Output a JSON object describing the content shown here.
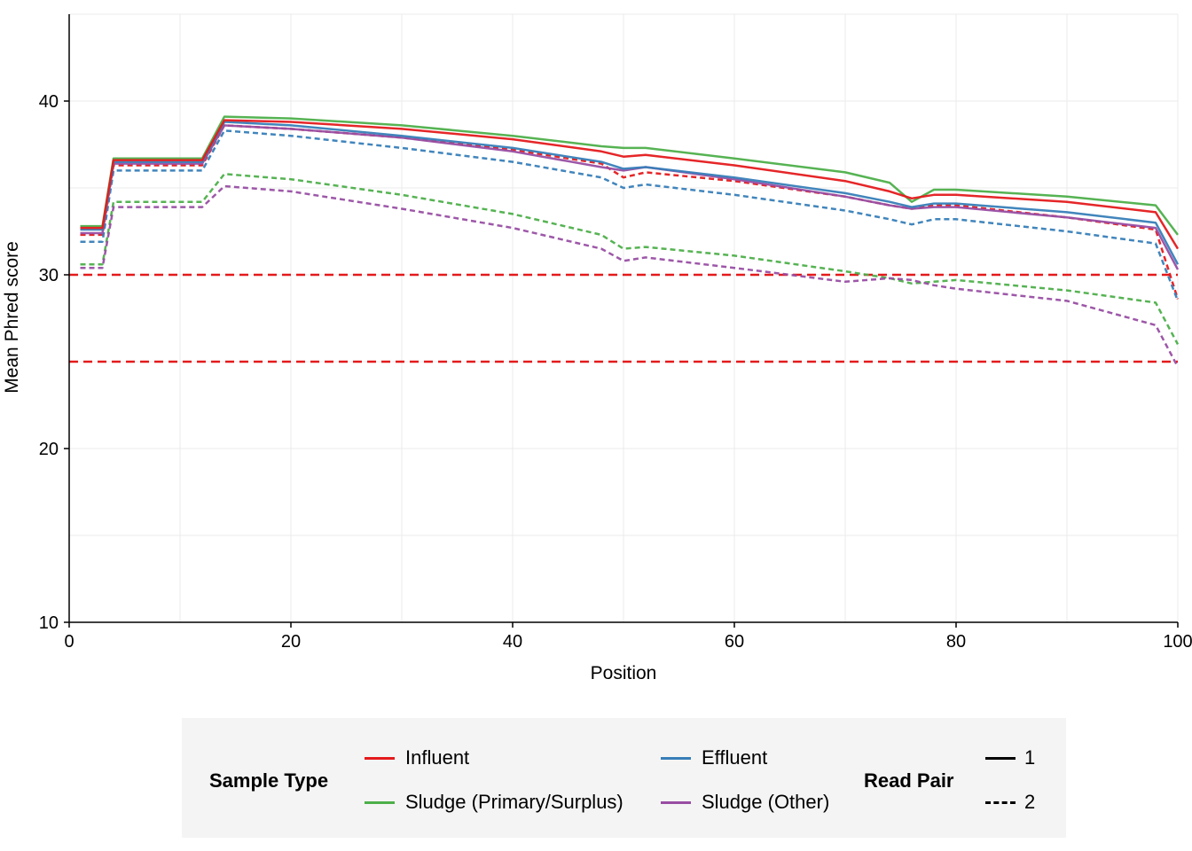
{
  "chart_data": {
    "type": "line",
    "xlabel": "Position",
    "ylabel": "Mean Phred score",
    "xlim": [
      0,
      100
    ],
    "ylim": [
      10,
      45
    ],
    "x_ticks": [
      "0",
      "20",
      "40",
      "60",
      "80",
      "100"
    ],
    "y_ticks": [
      "10",
      "20",
      "30",
      "40"
    ],
    "grid": true,
    "reference_lines": [
      30,
      25
    ],
    "reference_line_color": "#e41a1c",
    "x": [
      1,
      3,
      4,
      12,
      14,
      20,
      30,
      40,
      48,
      50,
      52,
      60,
      70,
      74,
      76,
      78,
      80,
      90,
      98,
      100
    ],
    "groups": [
      {
        "sample_type": "Influent",
        "read_pair": "1",
        "color": "#e41a1c",
        "values": [
          32.7,
          32.7,
          36.6,
          36.6,
          38.9,
          38.8,
          38.4,
          37.8,
          37.1,
          36.8,
          36.9,
          36.3,
          35.4,
          34.8,
          34.4,
          34.6,
          34.6,
          34.2,
          33.6,
          31.5
        ]
      },
      {
        "sample_type": "Influent",
        "read_pair": "2",
        "color": "#e41a1c",
        "values": [
          32.3,
          32.3,
          36.3,
          36.3,
          38.6,
          38.4,
          37.9,
          37.2,
          36.4,
          35.6,
          35.9,
          35.4,
          34.5,
          34.0,
          33.8,
          34.0,
          34.0,
          33.3,
          32.6,
          28.6
        ]
      },
      {
        "sample_type": "Effluent",
        "read_pair": "1",
        "color": "#377eb8",
        "values": [
          32.6,
          32.6,
          36.5,
          36.5,
          38.8,
          38.6,
          38.0,
          37.3,
          36.5,
          36.1,
          36.2,
          35.6,
          34.7,
          34.2,
          33.9,
          34.1,
          34.1,
          33.6,
          33.0,
          30.6
        ]
      },
      {
        "sample_type": "Effluent",
        "read_pair": "2",
        "color": "#377eb8",
        "values": [
          31.9,
          31.9,
          36.0,
          36.0,
          38.3,
          38.0,
          37.3,
          36.5,
          35.6,
          35.0,
          35.2,
          34.6,
          33.7,
          33.2,
          32.9,
          33.2,
          33.2,
          32.5,
          31.8,
          28.5
        ]
      },
      {
        "sample_type": "Sludge (Primary/Surplus)",
        "read_pair": "1",
        "color": "#4daf4a",
        "values": [
          32.8,
          32.8,
          36.7,
          36.7,
          39.1,
          39.0,
          38.6,
          38.0,
          37.4,
          37.3,
          37.3,
          36.7,
          35.9,
          35.3,
          34.2,
          34.9,
          34.9,
          34.5,
          34.0,
          32.3
        ]
      },
      {
        "sample_type": "Sludge (Primary/Surplus)",
        "read_pair": "2",
        "color": "#4daf4a",
        "values": [
          30.6,
          30.6,
          34.2,
          34.2,
          35.8,
          35.5,
          34.6,
          33.5,
          32.3,
          31.5,
          31.6,
          31.1,
          30.2,
          29.8,
          29.5,
          29.6,
          29.7,
          29.1,
          28.4,
          26.0
        ]
      },
      {
        "sample_type": "Sludge (Other)",
        "read_pair": "1",
        "color": "#984ea3",
        "values": [
          32.4,
          32.4,
          36.4,
          36.4,
          38.6,
          38.4,
          37.9,
          37.1,
          36.2,
          36.0,
          36.2,
          35.5,
          34.5,
          34.0,
          33.8,
          33.9,
          33.9,
          33.3,
          32.7,
          30.3
        ]
      },
      {
        "sample_type": "Sludge (Other)",
        "read_pair": "2",
        "color": "#984ea3",
        "values": [
          30.4,
          30.4,
          33.9,
          33.9,
          35.1,
          34.8,
          33.8,
          32.7,
          31.5,
          30.8,
          31.0,
          30.4,
          29.6,
          29.8,
          29.7,
          29.4,
          29.2,
          28.5,
          27.1,
          24.7
        ]
      }
    ]
  },
  "legend": {
    "sample_type_title": "Sample Type",
    "sample_types": [
      {
        "label": "Influent",
        "color": "#e41a1c"
      },
      {
        "label": "Effluent",
        "color": "#377eb8"
      },
      {
        "label": "Sludge (Primary/Surplus)",
        "color": "#4daf4a"
      },
      {
        "label": "Sludge (Other)",
        "color": "#984ea3"
      }
    ],
    "read_pair_title": "Read Pair",
    "read_pairs": [
      {
        "label": "1",
        "style": "solid"
      },
      {
        "label": "2",
        "style": "dashed"
      }
    ]
  }
}
